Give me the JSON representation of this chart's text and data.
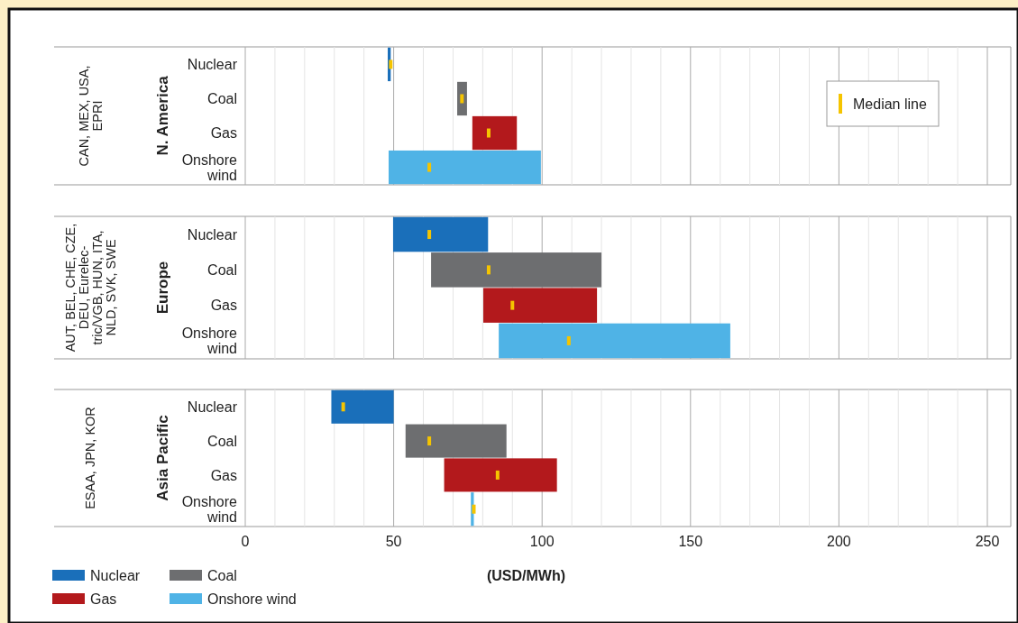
{
  "chart_data": [
    {
      "type": "bar",
      "orientation": "horizontal",
      "ylabel": "N. America",
      "annotations": [
        "CAN, MEX, USA,\nEPRI"
      ],
      "categories": [
        "Nuclear",
        "Coal",
        "Gas",
        "Onshore\nwind"
      ],
      "xlim": [
        0,
        250
      ],
      "xticks": [
        0,
        {
          "value": 10,
          "label": null
        },
        {
          "value": 20,
          "label": null
        },
        {
          "value": 30,
          "label": null
        },
        {
          "value": 40,
          "label": null
        },
        50,
        {
          "value": 60,
          "label": null
        },
        {
          "value": 70,
          "label": null
        },
        {
          "value": 80,
          "label": null
        },
        {
          "value": 90,
          "label": null
        },
        100,
        {
          "value": 110,
          "label": null
        },
        {
          "value": 120,
          "label": null
        },
        {
          "value": 130,
          "label": null
        },
        {
          "value": 140,
          "label": null
        },
        150,
        {
          "value": 160,
          "label": null
        },
        {
          "value": 170,
          "label": null
        },
        {
          "value": 180,
          "label": null
        },
        {
          "value": 190,
          "label": null
        },
        200,
        {
          "value": 210,
          "label": null
        },
        {
          "value": 220,
          "label": null
        },
        {
          "value": 230,
          "label": null
        },
        {
          "value": 240,
          "label": null
        },
        250
      ],
      "tick_labels": "y",
      "grid": "x",
      "legend": "top right",
      "series": [
        {
          "type": "bar",
          "values": [
            1,
            3.3,
            15,
            51.3
          ],
          "base": [
            48,
            71.4,
            76.5,
            48.3
          ],
          "colors": [
            "#1a6fba",
            "#6d6e70",
            "#b3191c",
            "#4fb3e6"
          ]
        },
        {
          "type": "scatter",
          "name": "Median line",
          "color": "#f5c400",
          "x": [
            "Nuclear",
            "Coal",
            "Gas",
            "Onshore\nwind"
          ],
          "values": [
            49,
            73,
            82,
            62
          ]
        }
      ]
    },
    {
      "type": "bar",
      "orientation": "horizontal",
      "ylabel": "Europe",
      "annotations": [
        "AUT, BEL, CHE, CZE,\nDEU, Eurelec-\ntric/VGB, HUN, ITA,\nNLD, SVK, SWE"
      ],
      "categories": [
        "Nuclear",
        "Coal",
        "Gas",
        "Onshore\nwind"
      ],
      "xlim": [
        0,
        250
      ],
      "xticks": [
        0,
        {
          "value": 10,
          "label": null
        },
        {
          "value": 20,
          "label": null
        },
        {
          "value": 30,
          "label": null
        },
        {
          "value": 40,
          "label": null
        },
        50,
        {
          "value": 60,
          "label": null
        },
        {
          "value": 70,
          "label": null
        },
        {
          "value": 80,
          "label": null
        },
        {
          "value": 90,
          "label": null
        },
        100,
        {
          "value": 110,
          "label": null
        },
        {
          "value": 120,
          "label": null
        },
        {
          "value": 130,
          "label": null
        },
        {
          "value": 140,
          "label": null
        },
        150,
        {
          "value": 160,
          "label": null
        },
        {
          "value": 170,
          "label": null
        },
        {
          "value": 180,
          "label": null
        },
        {
          "value": 190,
          "label": null
        },
        200,
        {
          "value": 210,
          "label": null
        },
        {
          "value": 220,
          "label": null
        },
        {
          "value": 230,
          "label": null
        },
        {
          "value": 240,
          "label": null
        },
        250
      ],
      "tick_labels": "y",
      "grid": "x",
      "series": [
        {
          "type": "bar",
          "values": [
            32,
            57.4,
            38.3,
            78
          ],
          "base": [
            49.8,
            62.6,
            80.2,
            85.4
          ],
          "colors": [
            "#1a6fba",
            "#6d6e70",
            "#b3191c",
            "#4fb3e6"
          ]
        },
        {
          "type": "scatter",
          "color": "#f5c400",
          "x": [
            "Nuclear",
            "Coal",
            "Gas",
            "Onshore\nwind"
          ],
          "values": [
            62,
            82,
            90,
            109
          ]
        }
      ]
    },
    {
      "type": "bar",
      "orientation": "horizontal",
      "ylabel": "Asia Pacific",
      "xlabel": "(USD/MWh)",
      "annotations": [
        "ESAA, JPN, KOR"
      ],
      "categories": [
        "Nuclear",
        "Coal",
        "Gas",
        "Onshore\nwind"
      ],
      "xlim": [
        0,
        250
      ],
      "xticks": [
        0,
        {
          "value": 10,
          "label": null
        },
        {
          "value": 20,
          "label": null
        },
        {
          "value": 30,
          "label": null
        },
        {
          "value": 40,
          "label": null
        },
        50,
        {
          "value": 60,
          "label": null
        },
        {
          "value": 70,
          "label": null
        },
        {
          "value": 80,
          "label": null
        },
        {
          "value": 90,
          "label": null
        },
        100,
        {
          "value": 110,
          "label": null
        },
        {
          "value": 120,
          "label": null
        },
        {
          "value": 130,
          "label": null
        },
        {
          "value": 140,
          "label": null
        },
        150,
        {
          "value": 160,
          "label": null
        },
        {
          "value": 170,
          "label": null
        },
        {
          "value": 180,
          "label": null
        },
        {
          "value": 190,
          "label": null
        },
        200,
        {
          "value": 210,
          "label": null
        },
        {
          "value": 220,
          "label": null
        },
        {
          "value": 230,
          "label": null
        },
        {
          "value": 240,
          "label": null
        },
        250
      ],
      "grid": "x",
      "legend": "bottom left",
      "series": [
        {
          "type": "bar",
          "name": "Nuclear",
          "color": "#1a6fba",
          "values": [
            21,
            null,
            null,
            null
          ],
          "base": [
            29,
            null,
            null,
            null
          ]
        },
        {
          "name": "Coal",
          "color": "#6d6e70",
          "values": [
            null,
            34,
            null,
            null
          ],
          "base": [
            null,
            54,
            null,
            null
          ]
        },
        {
          "name": "Gas",
          "color": "#b3191c",
          "values": [
            null,
            null,
            38,
            null
          ],
          "base": [
            null,
            null,
            67,
            null
          ]
        },
        {
          "name": "Onshore wind",
          "color": "#4fb3e6",
          "values": [
            null,
            null,
            null,
            1
          ],
          "base": [
            null,
            null,
            null,
            76
          ]
        },
        {
          "type": "scatter",
          "color": "#f5c400",
          "x": [
            "Nuclear",
            "Coal",
            "Gas",
            "Onshore\nwind"
          ],
          "values": [
            33,
            62,
            85,
            77
          ]
        }
      ]
    }
  ]
}
